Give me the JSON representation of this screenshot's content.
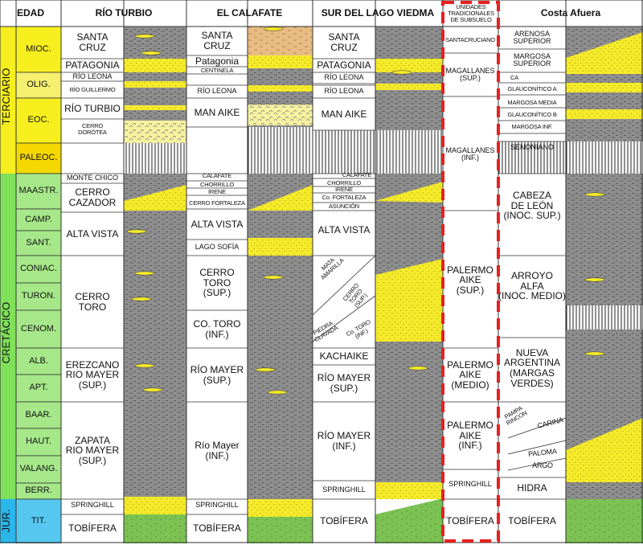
{
  "header": {
    "edad": "EDAD",
    "columns": [
      "RÍO TURBIO",
      "EL CALAFATE",
      "SUR DEL LAGO VIEDMA",
      "UNIDADES TRADICIONALES DE SUBSUELO",
      "Costa Afuera"
    ]
  },
  "eras": {
    "terciario": "TERCIARIO",
    "cretacico": "CRETÁCICO",
    "jurasico": "JUR."
  },
  "ages": [
    "MIOC.",
    "OLIG.",
    "EOC.",
    "PALEOC.",
    "MAASTR.",
    "CAMP.",
    "SANT.",
    "CONIAC.",
    "TURON.",
    "CENOM.",
    "ALB.",
    "APT.",
    "BAAR.",
    "HAUT.",
    "VALANG.",
    "BERR.",
    "TIT."
  ],
  "rio_turbio": {
    "santa_cruz": "SANTA\nCRUZ",
    "patagonia": "PATAGONIA",
    "rio_leona": "RÍO LEONA",
    "rio_guillermo": "RÍO GUILLERMO",
    "rio_turbio": "RÍO TURBIO",
    "cerro_dorotea": "CERRO\nDOROTEA",
    "monte_chico": "MONTE CHICO",
    "cerro_cazador": "CERRO\nCAZADOR",
    "alta_vista": "ALTA VISTA",
    "cerro_toro": "CERRO\nTORO",
    "erezcano": "EREZCANO\nRIO MAYER\n(SUP.)",
    "zapata": "ZAPATA\nRIO MAYER\n(SUP.)",
    "springhill": "SPRINGHILL",
    "tobifera": "TOBÍFERA"
  },
  "el_calafate": {
    "santa_cruz": "SANTA\nCRUZ",
    "patagonia": "Patagonia",
    "centinela": "CENTINELA",
    "rio_leona": "RÍO LEONA",
    "man_aike": "MAN AIKE",
    "calafate": "CALAFATE",
    "chorrillo": "CHORRILLO",
    "irene": "IRENE",
    "cerro_fortaleza": "CERRO FORTALEZA",
    "alta_vista": "ALTA VISTA",
    "lago_sofia": "LAGO SOFÍA",
    "cerro_toro_sup": "CERRO\nTORO\n(SUP.)",
    "cerro_toro_inf": "CO. TORO\n(INF.)",
    "rio_mayer_sup": "RÍO MAYER\n(SUP.)",
    "rio_mayer_inf": "Río Mayer\n(INF.)",
    "springhill": "SPRINGHILL",
    "tobifera": "TOBÍFERA"
  },
  "lago_viedma": {
    "santa_cruz": "SANTA\nCRUZ",
    "patagonia": "PATAGONIA",
    "rio_leona_1": "RÍO LEONA",
    "rio_leona_2": "RÍO LEONA",
    "man_aike": "MAN AIKE",
    "calafate": "CALAFATE",
    "chorrillo": "CHORRILLO",
    "irene": "IRENE",
    "co_fortaleza": "Co. FORTALEZA",
    "asuncion": "ASUNCIÓN",
    "alta_vista": "ALTA VISTA",
    "mata_amarilla": "MATA\nAMARILLA",
    "cerro_toro_sup": "CERRO\nTORO\n(SUP.)",
    "piedra_clavada": "PIEDRA\nCLAVADA",
    "co_toro_inf": "Co. TORO\n(INF.)",
    "kachaike": "KACHAIKE",
    "rio_mayer_sup": "RÍO MAYER\n(SUP.)",
    "rio_mayer_inf": "RÍO MAYER\n(INF.)",
    "springhill": "SPRINGHILL",
    "tobifera": "TOBÍFERA"
  },
  "subsuelo": {
    "santacruciano": "SANTACRUCIANO",
    "magallanes_sup": "MAGALLANES\n(SUP.)",
    "magallanes_inf": "MAGALLANES\n(INF.)",
    "palermo_sup": "PALERMO\nAIKE\n(SUP.)",
    "palermo_medio": "PALERMO\nAIKE\n(MEDIO)",
    "palermo_inf": "PALERMO\nAIKE\n(INF.)",
    "springhill": "SPRINGHILL",
    "tobifera": "TOBÍFERA"
  },
  "costa_afuera": {
    "arenosa": "ARENOSA\nSUPERIOR",
    "margosa_sup": "MARGOSA\nSUPERIOR",
    "ca": "CA",
    "glauconitico_a": "GLAUCONÍTICO A",
    "margosa_media": "MARGOSA MEDIA",
    "glauconitico_b": "GLAUCONÍTICO B",
    "margosa_inf": "MARGOSA INF.",
    "senoniano": "SENONIANO",
    "cabeza": "CABEZA\nDE LEÓN\n(INOC. SUP.)",
    "arroyo": "ARROYO\nALFA\n(INOC. MEDIO)",
    "nueva": "NUEVA\nARGENTINA\n(MARGAS\nVERDES)",
    "pampa": "PAMPA\nRINCON",
    "carina": "CARINA",
    "paloma": "PALOMA",
    "argo": "ARGO",
    "hidra": "HIDRA",
    "tobifera": "TOBÍFERA"
  },
  "colors": {
    "terciario": "#f7ef1d",
    "cretacico": "#7fe05a",
    "jurasico": "#2bb6ea",
    "age_mioc": "#f7ef1d",
    "age_olig": "#f5f070",
    "age_eoc": "#f7ef1d",
    "age_paleoc": "#f5d800",
    "age_cret": "#a6e889",
    "age_jur": "#56c8f0",
    "sandstone": "#f5ea2a",
    "shale": "#8e8e8e",
    "tuff": "#7cc253",
    "red_dash": "#e82020"
  }
}
